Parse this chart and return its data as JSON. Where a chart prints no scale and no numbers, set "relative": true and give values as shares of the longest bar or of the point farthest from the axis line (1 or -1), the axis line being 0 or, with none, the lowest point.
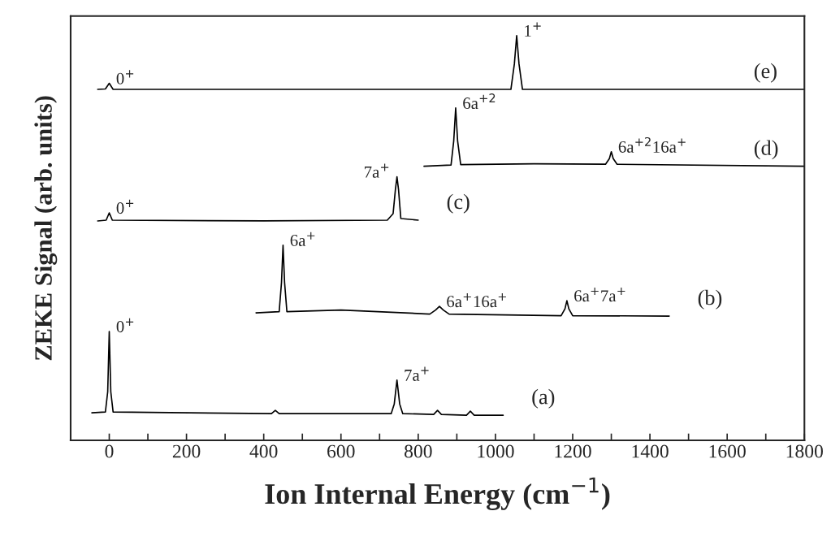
{
  "chart_data": {
    "type": "line",
    "relative": true,
    "xlabel": "Ion Internal Energy (cm$^{−1}$)",
    "ylabel": "ZEKE Signal (arb. units)",
    "xlim": [
      -100,
      1800
    ],
    "xticks": [
      {
        "value": -100,
        "label": null
      },
      0,
      {
        "value": 100,
        "label": null
      },
      200,
      {
        "value": 300,
        "label": null
      },
      400,
      {
        "value": 500,
        "label": null
      },
      600,
      {
        "value": 700,
        "label": null
      },
      800,
      {
        "value": 900,
        "label": null
      },
      1000,
      {
        "value": 1100,
        "label": null
      },
      1200,
      {
        "value": 1300,
        "label": null
      },
      1400,
      {
        "value": 1500,
        "label": null
      },
      1600,
      {
        "value": 1700,
        "label": null
      },
      1800
    ],
    "grid": false,
    "legend": false,
    "marker": "none",
    "line_style": "solid",
    "series": [
      {
        "name": "(a)",
        "color": "#000000",
        "x": [
          -45,
          -10,
          -4,
          0,
          4,
          10,
          420,
          430,
          440,
          730,
          738,
          745,
          752,
          760,
          840,
          850,
          860,
          925,
          935,
          945,
          1020
        ],
        "values": [
          0.068,
          0.07,
          0.12,
          0.269,
          0.12,
          0.07,
          0.066,
          0.074,
          0.066,
          0.066,
          0.09,
          0.149,
          0.09,
          0.066,
          0.064,
          0.074,
          0.064,
          0.062,
          0.072,
          0.062,
          0.062
        ]
      },
      {
        "name": "(b)",
        "color": "#000000",
        "x": [
          380,
          440,
          446,
          450,
          454,
          460,
          600,
          830,
          845,
          855,
          865,
          880,
          1170,
          1180,
          1185,
          1190,
          1200,
          1450
        ],
        "values": [
          0.315,
          0.318,
          0.39,
          0.482,
          0.39,
          0.318,
          0.322,
          0.312,
          0.322,
          0.331,
          0.322,
          0.312,
          0.308,
          0.325,
          0.345,
          0.325,
          0.308,
          0.307
        ]
      },
      {
        "name": "(c)",
        "color": "#000000",
        "x": [
          -30,
          -8,
          0,
          8,
          400,
          720,
          735,
          741,
          745,
          749,
          755,
          800
        ],
        "values": [
          0.542,
          0.544,
          0.562,
          0.544,
          0.542,
          0.544,
          0.56,
          0.62,
          0.651,
          0.62,
          0.548,
          0.544
        ]
      },
      {
        "name": "(d)",
        "color": "#000000",
        "x": [
          815,
          885,
          892,
          897,
          902,
          910,
          1100,
          1285,
          1295,
          1300,
          1305,
          1315,
          1800
        ],
        "values": [
          0.677,
          0.68,
          0.74,
          0.821,
          0.74,
          0.681,
          0.683,
          0.682,
          0.696,
          0.713,
          0.696,
          0.682,
          0.677
        ]
      },
      {
        "name": "(e)",
        "color": "#000000",
        "x": [
          -30,
          -10,
          0,
          10,
          1040,
          1049,
          1055,
          1061,
          1070,
          1800
        ],
        "values": [
          0.867,
          0.868,
          0.882,
          0.867,
          0.867,
          0.93,
          1.0,
          0.93,
          0.867,
          0.867
        ]
      }
    ],
    "annotations": [
      {
        "text": "0$^{+}$",
        "x": 0,
        "y": 0.269
      },
      {
        "text": "7a$^{+}$",
        "x": 745,
        "y": 0.149
      },
      {
        "text": "6a$^{+}$",
        "x": 450,
        "y": 0.482
      },
      {
        "text": "6a$^{+}$16a$^{+}$",
        "x": 855,
        "y": 0.331
      },
      {
        "text": "6a$^{+}$7a$^{+}$",
        "x": 1185,
        "y": 0.345
      },
      {
        "text": "0$^{+}$",
        "x": 0,
        "y": 0.562
      },
      {
        "text": "7a$^{+}$",
        "x": 745,
        "y": 0.651
      },
      {
        "text": "6a$^{+2}$",
        "x": 897,
        "y": 0.821
      },
      {
        "text": "6a$^{+2}$16a$^{+}$",
        "x": 1300,
        "y": 0.713
      },
      {
        "text": "0$^{+}$",
        "x": 0,
        "y": 0.882
      },
      {
        "text": "1$^{+}$",
        "x": 1055,
        "y": 1.0
      }
    ]
  }
}
